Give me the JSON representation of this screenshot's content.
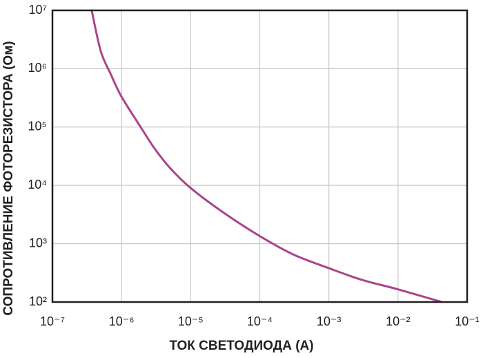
{
  "chart_data": {
    "type": "line",
    "xlabel": "ТОК СВЕТОДИОДА (А)",
    "ylabel": "СОПРОТИВЛЕНИЕ ФОТОРЕЗИСТОРА (Ом)",
    "xscale": "log",
    "yscale": "log",
    "grid": true,
    "color": "#a8458a",
    "x": [
      3.7e-07,
      5e-07,
      7e-07,
      1e-06,
      2e-06,
      3e-06,
      5e-06,
      1e-05,
      3e-05,
      0.0001,
      0.0003,
      0.001,
      0.003,
      0.01,
      0.043
    ],
    "values": [
      10000000.0,
      2000000.0,
      800000.0,
      330000.0,
      90000.0,
      43000.0,
      20000.0,
      9000.0,
      3400.0,
      1350.0,
      660,
      380,
      240,
      165,
      100
    ],
    "xlim": [
      1e-07,
      0.1
    ],
    "ylim": [
      100,
      10000000.0
    ],
    "xticks": [
      {
        "value": 1e-07,
        "label": "10⁻⁷"
      },
      {
        "value": 1e-06,
        "label": "10⁻⁶"
      },
      {
        "value": 1e-05,
        "label": "10⁻⁵"
      },
      {
        "value": 0.0001,
        "label": "10⁻⁴"
      },
      {
        "value": 0.001,
        "label": "10⁻³"
      },
      {
        "value": 0.01,
        "label": "10⁻²"
      },
      {
        "value": 0.1,
        "label": "10⁻¹"
      }
    ],
    "yticks": [
      {
        "value": 100,
        "label": "10²"
      },
      {
        "value": 1000,
        "label": "10³"
      },
      {
        "value": 10000,
        "label": "10⁴"
      },
      {
        "value": 100000,
        "label": "10⁵"
      },
      {
        "value": 1000000,
        "label": "10⁶"
      },
      {
        "value": 10000000,
        "label": "10⁷"
      }
    ]
  }
}
